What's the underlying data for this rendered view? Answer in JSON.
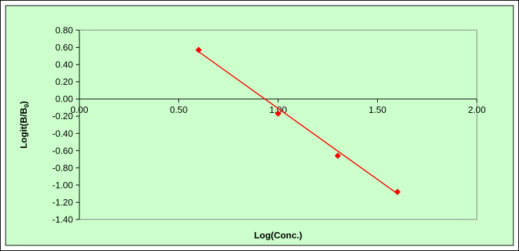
{
  "chart_data": {
    "type": "scatter",
    "title": "",
    "xlabel": "Log(Conc.)",
    "ylabel_main": "Logit(B/B",
    "ylabel_sub": "0",
    "ylabel_close": ")",
    "xlim": [
      0.0,
      2.0
    ],
    "ylim": [
      -1.4,
      0.8
    ],
    "x_ticks": [
      0.0,
      0.5,
      1.0,
      1.5,
      2.0
    ],
    "x_tick_labels": [
      "0.00",
      "0.50",
      "1.00",
      "1.50",
      "2.00"
    ],
    "y_ticks": [
      0.8,
      0.6,
      0.4,
      0.2,
      0.0,
      -0.2,
      -0.4,
      -0.6,
      -0.8,
      -1.0,
      -1.2,
      -1.4
    ],
    "y_tick_labels": [
      "0.80",
      "0.60",
      "0.40",
      "0.20",
      "0.00",
      "-0.20",
      "-0.40",
      "-0.60",
      "-0.80",
      "-1.00",
      "-1.20",
      "-1.40"
    ],
    "grid": false,
    "legend": "none",
    "series": [
      {
        "marker": "diamond",
        "color": "#ff0000",
        "points": [
          {
            "x": 0.6,
            "y": 0.57
          },
          {
            "x": 1.0,
            "y": -0.17
          },
          {
            "x": 1.3,
            "y": -0.66
          },
          {
            "x": 1.6,
            "y": -1.08
          }
        ]
      }
    ],
    "trendline": {
      "type": "linear",
      "color": "#ff0000",
      "x_start": 0.6,
      "x_end": 1.6,
      "y_start": 0.55,
      "y_end": -1.1
    },
    "colors": {
      "frame_background": "#ffffff",
      "chart_area": "#ccffcc",
      "plot_area": "#ccffcc",
      "axis": "#000000"
    }
  }
}
